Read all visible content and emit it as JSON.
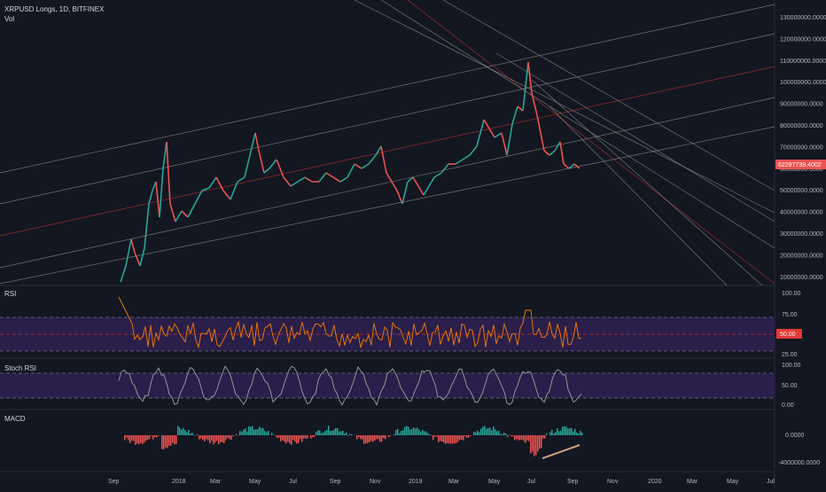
{
  "header": {
    "symbol_line": "XRPUSD Longs, 1D, BITFINEX",
    "volume_label": "Vol"
  },
  "price_axis": {
    "ticks": [
      "130000000.0000",
      "120000000.0000",
      "110000000.0000",
      "100000000.0000",
      "90000000.0000",
      "80000000.0000",
      "70000000.0000",
      "60000000.0000",
      "50000000.0000",
      "40000000.0000",
      "30000000.0000",
      "20000000.0000",
      "10000000.0000"
    ],
    "last_price": "62287739.4002",
    "last_price_color": "#ef5350"
  },
  "rsi": {
    "label": "RSI",
    "ticks": [
      "100.00",
      "75.00",
      "50.00",
      "25.00"
    ],
    "current_badge": "50.00",
    "badge_color": "#e53935"
  },
  "stoch_rsi": {
    "label": "Stoch RSI",
    "ticks": [
      "100.00",
      "50.00",
      "0.00"
    ]
  },
  "macd": {
    "label": "MACD",
    "ticks": [
      "0.0000",
      "-4000000.0000"
    ]
  },
  "time_axis": {
    "ticks": [
      "Sep",
      "2018",
      "Mar",
      "May",
      "Jul",
      "Sep",
      "Nov",
      "2019",
      "Mar",
      "May",
      "Jul",
      "Sep",
      "Nov",
      "2020",
      "Mar",
      "May",
      "Jul"
    ]
  },
  "colors": {
    "background": "#131722",
    "up": "#26a69a",
    "down": "#ef5350",
    "rsi_line": "#f57c00",
    "stoch_line": "#9e9e9e",
    "channel_line": "#c0c0c0",
    "median_line": "#d32f2f",
    "band_fill": "#2a1f4a"
  }
}
